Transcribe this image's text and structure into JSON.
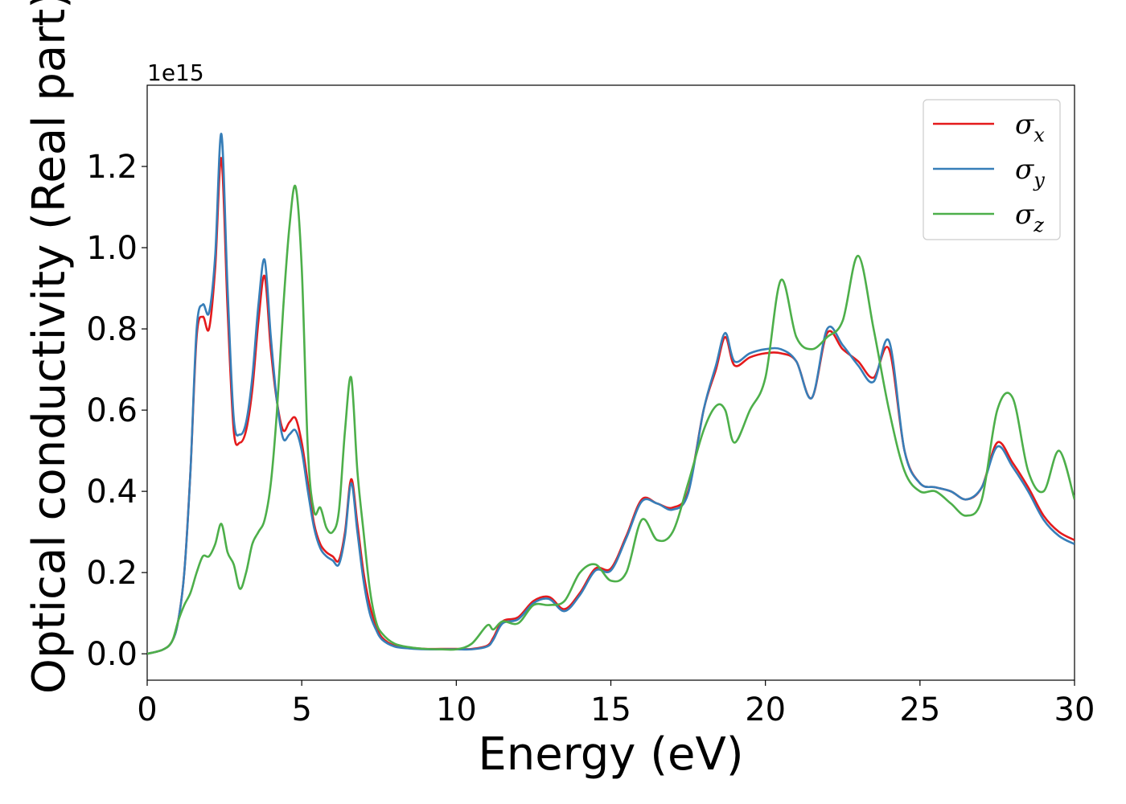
{
  "chart_data": {
    "type": "line",
    "title": "",
    "xlabel": "Energy (eV)",
    "ylabel": "Optical conductivity (Real part)",
    "y_offset_label": "1e15",
    "xlim": [
      0,
      30
    ],
    "ylim": [
      -0.065,
      1.4
    ],
    "xticks": [
      0,
      5,
      10,
      15,
      20,
      25,
      30
    ],
    "xtick_labels": [
      "0",
      "5",
      "10",
      "15",
      "20",
      "25",
      "30"
    ],
    "yticks": [
      0.0,
      0.2,
      0.4,
      0.6,
      0.8,
      1.0,
      1.2
    ],
    "ytick_labels": [
      "0.0",
      "0.2",
      "0.4",
      "0.6",
      "0.8",
      "1.0",
      "1.2"
    ],
    "grid": false,
    "legend_position": "top-right",
    "series": [
      {
        "name": "σx",
        "symbol": "σ",
        "subscript": "x",
        "color": "#e41a1c",
        "x": [
          0,
          0.5,
          0.8,
          1.0,
          1.2,
          1.4,
          1.6,
          1.8,
          2.0,
          2.2,
          2.4,
          2.6,
          2.8,
          3.0,
          3.2,
          3.4,
          3.6,
          3.8,
          4.0,
          4.2,
          4.4,
          4.6,
          4.8,
          5.0,
          5.2,
          5.4,
          5.6,
          5.8,
          6.0,
          6.2,
          6.4,
          6.6,
          6.8,
          7.0,
          7.2,
          7.4,
          7.6,
          8.0,
          8.5,
          9.0,
          9.5,
          10.0,
          10.5,
          11.0,
          11.2,
          11.5,
          12.0,
          12.5,
          13.0,
          13.5,
          14.0,
          14.5,
          15.0,
          15.5,
          16.0,
          16.5,
          17.0,
          17.5,
          18.0,
          18.4,
          18.7,
          19.0,
          19.5,
          20.0,
          20.5,
          21.0,
          21.5,
          22.0,
          22.5,
          23.0,
          23.5,
          24.0,
          24.5,
          25.0,
          25.5,
          26.0,
          26.5,
          27.0,
          27.5,
          28.0,
          28.5,
          29.0,
          29.5,
          30.0
        ],
        "y": [
          0.0,
          0.01,
          0.03,
          0.08,
          0.2,
          0.45,
          0.78,
          0.83,
          0.8,
          0.95,
          1.22,
          0.85,
          0.55,
          0.52,
          0.55,
          0.65,
          0.82,
          0.93,
          0.75,
          0.62,
          0.55,
          0.57,
          0.58,
          0.52,
          0.42,
          0.32,
          0.27,
          0.25,
          0.24,
          0.23,
          0.3,
          0.43,
          0.32,
          0.2,
          0.12,
          0.07,
          0.04,
          0.02,
          0.015,
          0.012,
          0.012,
          0.012,
          0.012,
          0.02,
          0.04,
          0.08,
          0.09,
          0.13,
          0.14,
          0.11,
          0.15,
          0.21,
          0.21,
          0.29,
          0.38,
          0.37,
          0.36,
          0.4,
          0.6,
          0.7,
          0.78,
          0.71,
          0.73,
          0.74,
          0.74,
          0.72,
          0.63,
          0.79,
          0.75,
          0.72,
          0.68,
          0.75,
          0.5,
          0.42,
          0.41,
          0.4,
          0.38,
          0.41,
          0.52,
          0.47,
          0.41,
          0.34,
          0.3,
          0.28
        ]
      },
      {
        "name": "σy",
        "symbol": "σ",
        "subscript": "y",
        "color": "#377eb8",
        "x": [
          0,
          0.5,
          0.8,
          1.0,
          1.2,
          1.4,
          1.6,
          1.8,
          2.0,
          2.2,
          2.4,
          2.6,
          2.8,
          3.0,
          3.2,
          3.4,
          3.6,
          3.8,
          4.0,
          4.2,
          4.4,
          4.6,
          4.8,
          5.0,
          5.2,
          5.4,
          5.6,
          5.8,
          6.0,
          6.2,
          6.4,
          6.6,
          6.8,
          7.0,
          7.2,
          7.4,
          7.6,
          8.0,
          8.5,
          9.0,
          9.5,
          10.0,
          10.5,
          11.0,
          11.2,
          11.5,
          12.0,
          12.5,
          13.0,
          13.5,
          14.0,
          14.5,
          15.0,
          15.5,
          16.0,
          16.5,
          17.0,
          17.5,
          18.0,
          18.4,
          18.7,
          19.0,
          19.5,
          20.0,
          20.5,
          21.0,
          21.5,
          22.0,
          22.5,
          23.0,
          23.5,
          24.0,
          24.5,
          25.0,
          25.5,
          26.0,
          26.5,
          27.0,
          27.5,
          28.0,
          28.5,
          29.0,
          29.5,
          30.0
        ],
        "y": [
          0.0,
          0.01,
          0.03,
          0.08,
          0.2,
          0.45,
          0.8,
          0.86,
          0.84,
          0.98,
          1.28,
          0.9,
          0.58,
          0.54,
          0.57,
          0.68,
          0.86,
          0.97,
          0.78,
          0.62,
          0.53,
          0.54,
          0.55,
          0.5,
          0.4,
          0.31,
          0.26,
          0.24,
          0.23,
          0.22,
          0.29,
          0.42,
          0.3,
          0.18,
          0.1,
          0.06,
          0.035,
          0.018,
          0.013,
          0.011,
          0.011,
          0.011,
          0.011,
          0.018,
          0.035,
          0.075,
          0.085,
          0.125,
          0.135,
          0.105,
          0.145,
          0.205,
          0.205,
          0.285,
          0.375,
          0.37,
          0.355,
          0.395,
          0.6,
          0.71,
          0.79,
          0.72,
          0.74,
          0.75,
          0.75,
          0.72,
          0.63,
          0.8,
          0.76,
          0.71,
          0.67,
          0.77,
          0.5,
          0.42,
          0.41,
          0.4,
          0.38,
          0.41,
          0.51,
          0.46,
          0.4,
          0.33,
          0.29,
          0.27
        ]
      },
      {
        "name": "σz",
        "symbol": "σ",
        "subscript": "z",
        "color": "#4daf4a",
        "x": [
          0,
          0.5,
          0.8,
          1.0,
          1.2,
          1.4,
          1.6,
          1.8,
          2.0,
          2.2,
          2.4,
          2.6,
          2.8,
          3.0,
          3.2,
          3.4,
          3.6,
          3.8,
          4.0,
          4.2,
          4.4,
          4.6,
          4.8,
          5.0,
          5.2,
          5.4,
          5.6,
          5.8,
          6.0,
          6.2,
          6.4,
          6.6,
          6.8,
          7.0,
          7.2,
          7.4,
          7.6,
          8.0,
          8.5,
          9.0,
          9.5,
          10.0,
          10.5,
          11.0,
          11.2,
          11.5,
          12.0,
          12.5,
          13.0,
          13.5,
          14.0,
          14.5,
          15.0,
          15.5,
          16.0,
          16.5,
          17.0,
          17.5,
          18.0,
          18.4,
          18.7,
          19.0,
          19.5,
          20.0,
          20.5,
          21.0,
          21.5,
          22.0,
          22.5,
          23.0,
          23.5,
          24.0,
          24.5,
          25.0,
          25.5,
          26.0,
          26.5,
          27.0,
          27.5,
          28.0,
          28.5,
          29.0,
          29.5,
          30.0
        ],
        "y": [
          0.0,
          0.01,
          0.03,
          0.08,
          0.12,
          0.15,
          0.2,
          0.24,
          0.24,
          0.27,
          0.32,
          0.25,
          0.22,
          0.16,
          0.2,
          0.27,
          0.3,
          0.33,
          0.42,
          0.6,
          0.85,
          1.05,
          1.15,
          0.95,
          0.5,
          0.35,
          0.36,
          0.31,
          0.3,
          0.35,
          0.55,
          0.68,
          0.45,
          0.3,
          0.16,
          0.08,
          0.05,
          0.025,
          0.016,
          0.012,
          0.011,
          0.011,
          0.025,
          0.07,
          0.06,
          0.08,
          0.075,
          0.12,
          0.12,
          0.13,
          0.2,
          0.22,
          0.18,
          0.2,
          0.33,
          0.28,
          0.3,
          0.42,
          0.55,
          0.61,
          0.6,
          0.52,
          0.6,
          0.68,
          0.92,
          0.78,
          0.75,
          0.78,
          0.82,
          0.98,
          0.8,
          0.6,
          0.45,
          0.4,
          0.4,
          0.37,
          0.34,
          0.38,
          0.6,
          0.63,
          0.45,
          0.4,
          0.5,
          0.38
        ]
      }
    ]
  }
}
